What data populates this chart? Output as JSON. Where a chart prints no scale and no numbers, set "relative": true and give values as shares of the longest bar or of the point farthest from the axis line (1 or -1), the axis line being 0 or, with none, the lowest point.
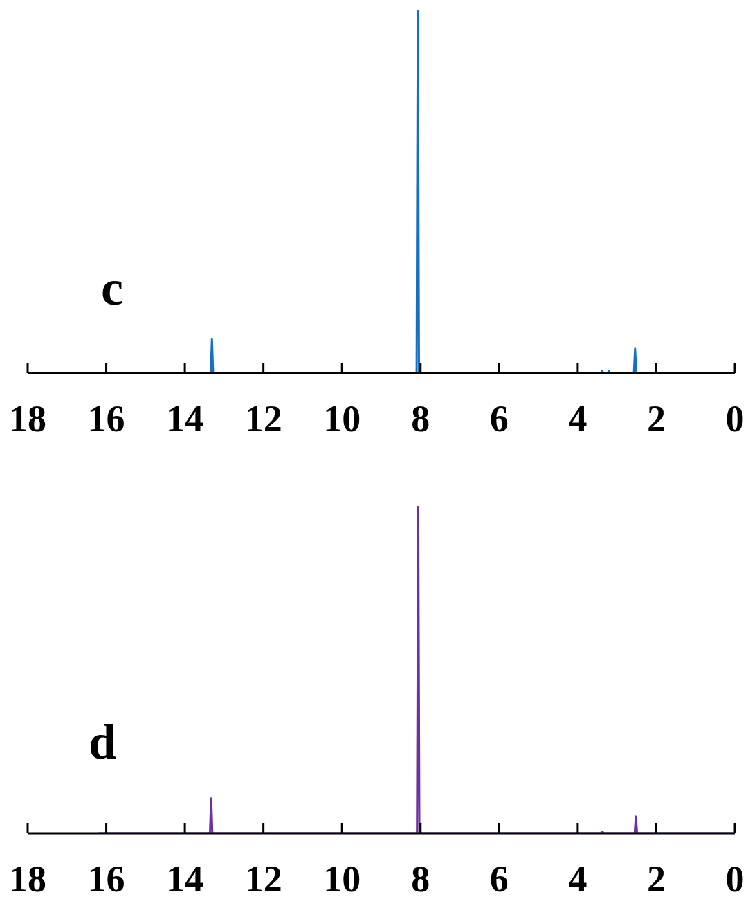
{
  "chart_data": [
    {
      "type": "line",
      "title": "c",
      "relative": true,
      "xlim": [
        18,
        0
      ],
      "xticks": [
        18,
        16,
        14,
        12,
        10,
        8,
        6,
        4,
        2,
        0
      ],
      "tick_labels": "x",
      "marker": "none",
      "line_style": "solid",
      "x": [
        16.2,
        13.34,
        13.31,
        13.28,
        8.1,
        8.07,
        8.04,
        3.41,
        3.38,
        3.35,
        3.24,
        3.21,
        3.18,
        2.57,
        2.54,
        2.51,
        0
      ],
      "series": [
        {
          "color": "#1570c4",
          "values": [
            0,
            0,
            0.093,
            0,
            0,
            1,
            0,
            0,
            0.006,
            0,
            0,
            0.006,
            0,
            0,
            0.067,
            0,
            0
          ]
        }
      ]
    },
    {
      "type": "line",
      "title": "d",
      "relative": true,
      "xlim": [
        18,
        0
      ],
      "xticks": [
        18,
        16,
        14,
        12,
        10,
        8,
        6,
        4,
        2,
        0
      ],
      "tick_labels": "x",
      "marker": "none",
      "line_style": "solid",
      "x": [
        16.2,
        13.36,
        13.33,
        13.3,
        8.09,
        8.06,
        8.03,
        3.4,
        3.37,
        3.34,
        2.55,
        2.52,
        2.49,
        0
      ],
      "series": [
        {
          "color": "#7030a0",
          "values": [
            0,
            0,
            0.106,
            0,
            0,
            1,
            0,
            0,
            0.005,
            0,
            0,
            0.051,
            0,
            0
          ]
        }
      ]
    }
  ]
}
